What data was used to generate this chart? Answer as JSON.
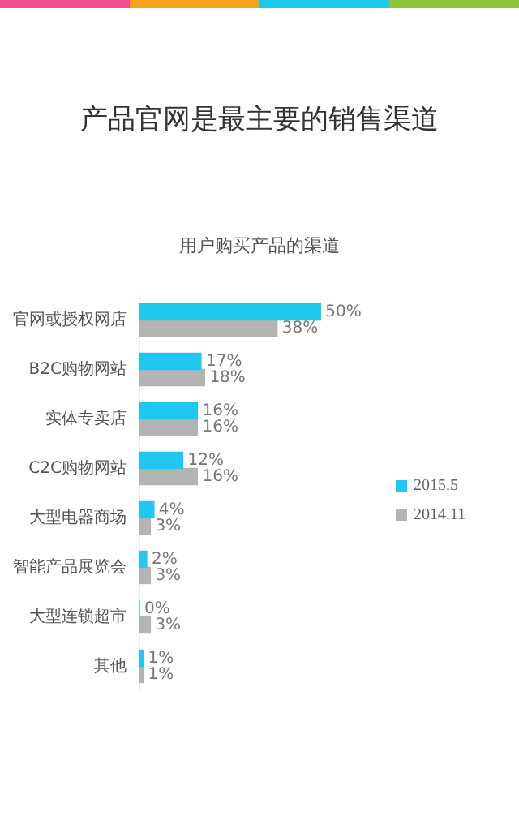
{
  "chart_data": {
    "type": "bar",
    "orientation": "horizontal",
    "title": "产品官网是最主要的销售渠道",
    "subtitle": "用户购买产品的渠道",
    "categories": [
      "官网或授权网店",
      "B2C购物网站",
      "实体专卖店",
      "C2C购物网站",
      "大型电器商场",
      "智能产品展览会",
      "大型连锁超市",
      "其他"
    ],
    "series": [
      {
        "name": "2015.5",
        "color": "#1ec8ee",
        "values": [
          50,
          17,
          16,
          12,
          4,
          2,
          0,
          1
        ],
        "value_labels": [
          "50%",
          "17%",
          "16%",
          "12%",
          "4%",
          "2%",
          "0%",
          "1%"
        ]
      },
      {
        "name": "2014.11",
        "color": "#b4b4b4",
        "values": [
          38,
          18,
          16,
          16,
          3,
          3,
          3,
          1
        ],
        "value_labels": [
          "38%",
          "18%",
          "16%",
          "16%",
          "3%",
          "3%",
          "3%",
          "1%"
        ]
      }
    ],
    "legend": "right"
  }
}
